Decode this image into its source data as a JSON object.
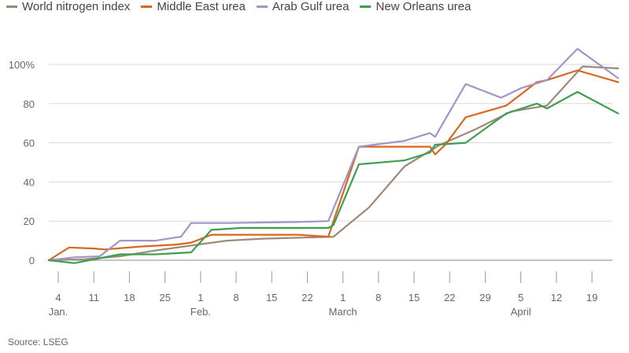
{
  "chart_data": {
    "type": "line",
    "title": "",
    "xlabel": "",
    "ylabel": "",
    "ylim": [
      0,
      110
    ],
    "y_ticks": [
      "0",
      "20",
      "40",
      "60",
      "80",
      "100%"
    ],
    "y_tick_values": [
      0,
      20,
      40,
      60,
      80,
      100
    ],
    "x_tick_days": [
      "4",
      "11",
      "18",
      "25",
      "1",
      "8",
      "15",
      "22",
      "1",
      "8",
      "15",
      "22",
      "29",
      "5",
      "12",
      "19"
    ],
    "x_tick_index": [
      0,
      7,
      14,
      21,
      28,
      35,
      42,
      49,
      56,
      63,
      70,
      77,
      84,
      91,
      98,
      105
    ],
    "x_months": [
      {
        "label": "Jan.",
        "index": 0
      },
      {
        "label": "Feb.",
        "index": 28
      },
      {
        "label": "March",
        "index": 56
      },
      {
        "label": "April",
        "index": 91
      }
    ],
    "x_range": [
      0,
      112
    ],
    "series": [
      {
        "name": "World nitrogen index",
        "color": "#9e8976",
        "points": [
          [
            0,
            0
          ],
          [
            7,
            0.5
          ],
          [
            14,
            2
          ],
          [
            21,
            5
          ],
          [
            28,
            7.5
          ],
          [
            35,
            10
          ],
          [
            42,
            11
          ],
          [
            49,
            11.5
          ],
          [
            56,
            12
          ],
          [
            63,
            27
          ],
          [
            70,
            48
          ],
          [
            77,
            59
          ],
          [
            84,
            67
          ],
          [
            91,
            76
          ],
          [
            98,
            79
          ],
          [
            105,
            99
          ],
          [
            112,
            98
          ]
        ]
      },
      {
        "name": "Middle East urea",
        "color": "#d9661f",
        "points": [
          [
            0,
            0
          ],
          [
            4,
            6.5
          ],
          [
            9,
            6
          ],
          [
            11,
            5.5
          ],
          [
            18,
            7
          ],
          [
            25,
            8
          ],
          [
            28,
            9
          ],
          [
            32,
            13
          ],
          [
            42,
            13
          ],
          [
            49,
            13
          ],
          [
            55,
            12
          ],
          [
            56,
            20
          ],
          [
            61,
            58
          ],
          [
            70,
            58
          ],
          [
            75,
            58
          ],
          [
            76,
            54
          ],
          [
            78,
            59
          ],
          [
            82,
            73
          ],
          [
            90,
            79
          ],
          [
            96,
            91
          ],
          [
            98,
            92
          ],
          [
            104,
            97
          ],
          [
            112,
            91
          ]
        ]
      },
      {
        "name": "Arab Gulf urea",
        "color": "#a095c8",
        "points": [
          [
            0,
            0
          ],
          [
            5,
            1.5
          ],
          [
            10,
            2
          ],
          [
            14,
            10
          ],
          [
            21,
            10
          ],
          [
            26,
            12
          ],
          [
            28,
            19
          ],
          [
            35,
            19
          ],
          [
            49,
            19.5
          ],
          [
            55,
            20
          ],
          [
            61,
            58
          ],
          [
            70,
            61
          ],
          [
            75,
            65
          ],
          [
            76,
            63
          ],
          [
            82,
            90
          ],
          [
            89,
            83
          ],
          [
            93,
            88
          ],
          [
            98,
            92
          ],
          [
            104,
            108
          ],
          [
            112,
            93
          ]
        ]
      },
      {
        "name": "New Orleans urea",
        "color": "#3e9e50",
        "points": [
          [
            0,
            0
          ],
          [
            5,
            -1.5
          ],
          [
            10,
            1
          ],
          [
            14,
            3
          ],
          [
            21,
            3
          ],
          [
            28,
            4
          ],
          [
            32,
            15.5
          ],
          [
            38,
            16.5
          ],
          [
            49,
            16.5
          ],
          [
            55,
            16.5
          ],
          [
            56,
            18
          ],
          [
            61,
            49
          ],
          [
            70,
            51
          ],
          [
            75,
            55
          ],
          [
            76,
            59
          ],
          [
            82,
            60
          ],
          [
            90,
            75
          ],
          [
            96,
            80
          ],
          [
            98,
            77.5
          ],
          [
            104,
            86
          ],
          [
            112,
            75
          ]
        ]
      }
    ]
  },
  "source": "Source: LSEG"
}
